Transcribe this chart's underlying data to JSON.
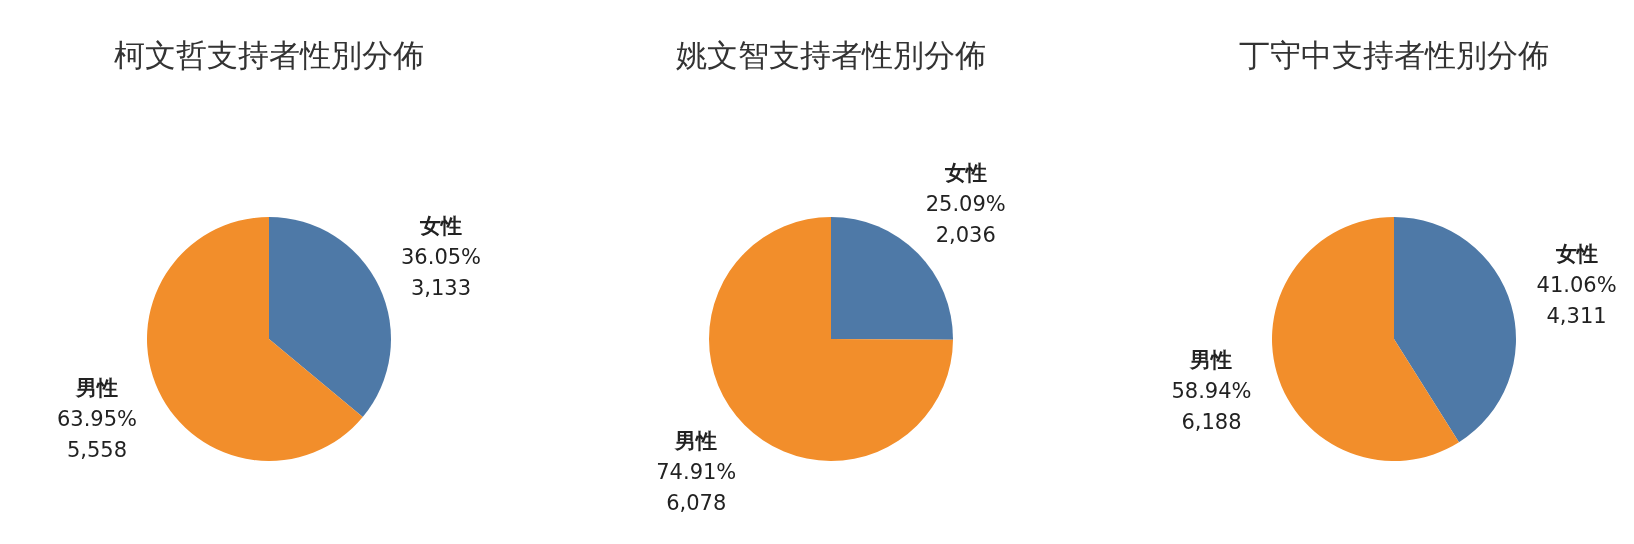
{
  "chart_data": [
    {
      "type": "pie",
      "title": "柯文哲支持者性別分佈",
      "categories": [
        "女性",
        "男性"
      ],
      "values": [
        36.05,
        63.95
      ],
      "colors": [
        "#4e79a7",
        "#f28e2b"
      ],
      "value_labels": [
        "36.05%\n3,133",
        "63.95%\n5,558"
      ]
    },
    {
      "type": "pie",
      "title": "姚文智支持者性別分佈",
      "categories": [
        "女性",
        "男性"
      ],
      "values": [
        25.09,
        74.91
      ],
      "colors": [
        "#4e79a7",
        "#f28e2b"
      ],
      "value_labels": [
        "25.09%\n2,036",
        "74.91%\n6,078"
      ]
    },
    {
      "type": "pie",
      "title": "丁守中支持者性別分佈",
      "categories": [
        "女性",
        "男性"
      ],
      "values": [
        41.06,
        58.94
      ],
      "colors": [
        "#4e79a7",
        "#f28e2b"
      ],
      "value_labels": [
        "41.06%\n4,311",
        "58.94%\n6,188"
      ]
    }
  ]
}
